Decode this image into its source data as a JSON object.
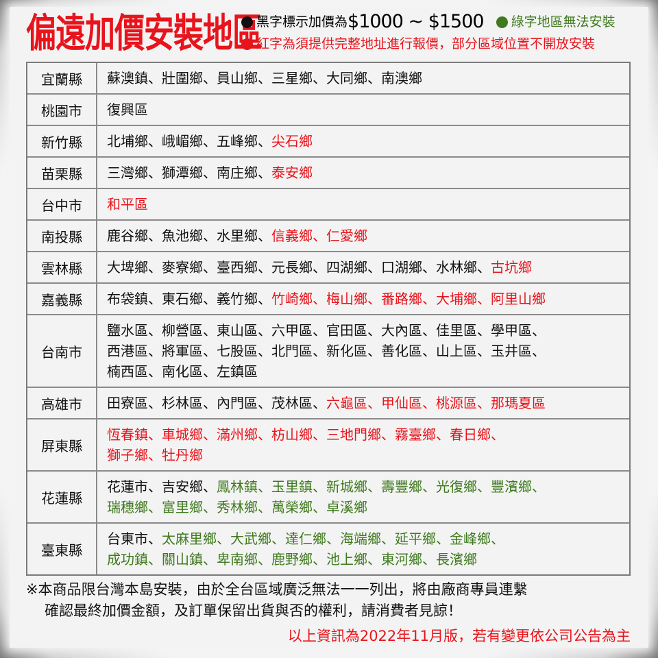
{
  "header": {
    "title": "偏遠加價安裝地區",
    "note_black_prefix": "黑字標示加價為",
    "note_black_price": "$1000 ~ $1500",
    "note_green": "綠字地區無法安裝",
    "note_red": "紅字為須提供完整地址進行報價，部分區域位置不開放安裝"
  },
  "colors": {
    "black": "#111111",
    "red": "#e8141c",
    "green": "#3f7a1e"
  },
  "rows": [
    {
      "label": "宜蘭縣",
      "lines": [
        [
          {
            "t": "蘇澳鎮、壯圍鄉、員山鄉、三星鄉、大同鄉、南澳鄉",
            "c": "k"
          }
        ]
      ]
    },
    {
      "label": "桃園市",
      "lines": [
        [
          {
            "t": "復興區",
            "c": "k"
          }
        ]
      ]
    },
    {
      "label": "新竹縣",
      "lines": [
        [
          {
            "t": "北埔鄉、峨嵋鄉、五峰鄉、",
            "c": "k"
          },
          {
            "t": "尖石鄉",
            "c": "r"
          }
        ]
      ]
    },
    {
      "label": "苗栗縣",
      "lines": [
        [
          {
            "t": "三灣鄉、獅潭鄉、南庄鄉、",
            "c": "k"
          },
          {
            "t": "泰安鄉",
            "c": "r"
          }
        ]
      ]
    },
    {
      "label": "台中市",
      "lines": [
        [
          {
            "t": "和平區",
            "c": "r"
          }
        ]
      ]
    },
    {
      "label": "南投縣",
      "lines": [
        [
          {
            "t": "鹿谷鄉、魚池鄉、水里鄉、",
            "c": "k"
          },
          {
            "t": "信義鄉、仁愛鄉",
            "c": "r"
          }
        ]
      ]
    },
    {
      "label": "雲林縣",
      "lines": [
        [
          {
            "t": "大埤鄉、麥寮鄉、臺西鄉、元長鄉、四湖鄉、口湖鄉、水林鄉、",
            "c": "k"
          },
          {
            "t": "古坑鄉",
            "c": "r"
          }
        ]
      ]
    },
    {
      "label": "嘉義縣",
      "lines": [
        [
          {
            "t": "布袋鎮、東石鄉、義竹鄉、",
            "c": "k"
          },
          {
            "t": "竹崎鄉、梅山鄉、番路鄉、大埔鄉、阿里山鄉",
            "c": "r"
          }
        ]
      ]
    },
    {
      "label": "台南市",
      "lines": [
        [
          {
            "t": "鹽水區、柳營區、東山區、六甲區、官田區、大內區、佳里區、學甲區、",
            "c": "k"
          }
        ],
        [
          {
            "t": "西港區、將軍區、七股區、北門區、新化區、善化區、山上區、玉井區、",
            "c": "k"
          }
        ],
        [
          {
            "t": "楠西區、南化區、左鎮區",
            "c": "k"
          }
        ]
      ]
    },
    {
      "label": "高雄市",
      "lines": [
        [
          {
            "t": "田寮區、杉林區、內門區、茂林區、",
            "c": "k"
          },
          {
            "t": "六龜區、甲仙區、桃源區、那瑪夏區",
            "c": "r"
          }
        ]
      ]
    },
    {
      "label": "屏東縣",
      "lines": [
        [
          {
            "t": "恆春鎮、車城鄉、滿州鄉、枋山鄉、三地門鄉、霧臺鄉、春日鄉、",
            "c": "r"
          }
        ],
        [
          {
            "t": "獅子鄉、牡丹鄉",
            "c": "r"
          }
        ]
      ]
    },
    {
      "label": "花蓮縣",
      "lines": [
        [
          {
            "t": "花蓮市、吉安鄉、",
            "c": "k"
          },
          {
            "t": "鳳林鎮、玉里鎮、新城鄉、壽豐鄉、光復鄉、豐濱鄉、",
            "c": "g"
          }
        ],
        [
          {
            "t": "瑞穗鄉、富里鄉、秀林鄉、萬榮鄉、卓溪鄉",
            "c": "g"
          }
        ]
      ]
    },
    {
      "label": "臺東縣",
      "lines": [
        [
          {
            "t": "台東市、",
            "c": "k"
          },
          {
            "t": "太麻里鄉、大武鄉、達仁鄉、海端鄉、延平鄉、金峰鄉、",
            "c": "g"
          }
        ],
        [
          {
            "t": "成功鎮、關山鎮、卑南鄉、鹿野鄉、池上鄉、東河鄉、長濱鄉",
            "c": "g"
          }
        ]
      ]
    }
  ],
  "footer": {
    "line1": "※本商品限台灣本島安裝，由於全台區域廣泛無法一一列出，將由廠商專員連繫",
    "line2": "確認最終加價金額，及訂單保留出貨與否的權利，請消費者見諒！",
    "version": "以上資訊為2022年11月版，若有變更依公司公告為主"
  }
}
